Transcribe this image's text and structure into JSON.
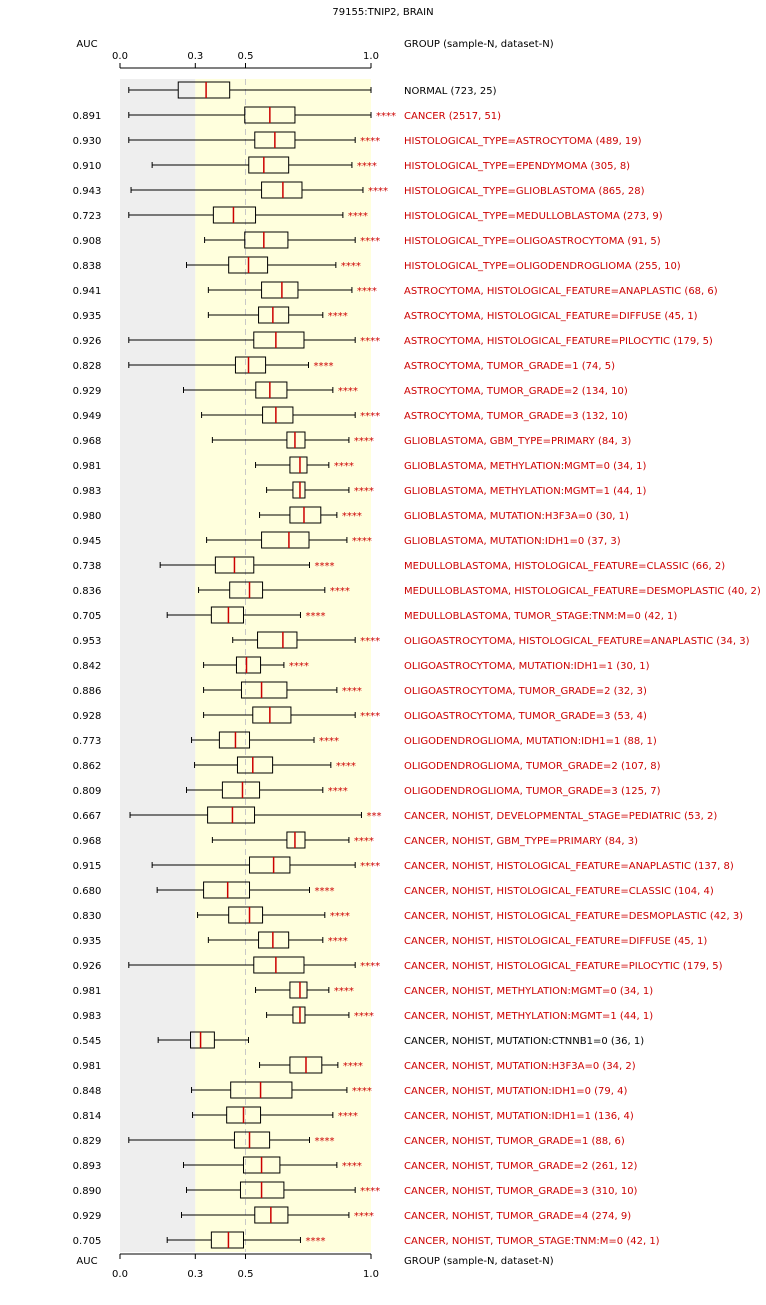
{
  "chart_data": {
    "type": "boxplot",
    "title": "79155:TNIP2, BRAIN",
    "auc_header": "AUC",
    "group_header": "GROUP (sample-N, dataset-N)",
    "xlim": [
      0,
      1
    ],
    "ticks": [
      {
        "value": 0.0,
        "label": "0.0"
      },
      {
        "value": 0.3,
        "label": "0.3"
      },
      {
        "value": 0.5,
        "label": "0.5"
      },
      {
        "value": 1.0,
        "label": "1.0"
      }
    ],
    "gray_region": [
      0,
      0.3
    ],
    "yellow_region": [
      0.3,
      1.0
    ],
    "colors": {
      "significant": "#cc0000",
      "normal": "#000000",
      "gray_band": "#eeeeee",
      "yellow_band": "#ffffdd",
      "median": "#cc0000"
    },
    "rows": [
      {
        "auc": "",
        "label": "NORMAL (723, 25)",
        "red": false,
        "sig": "",
        "min": 0.035,
        "q1": 0.232,
        "median": 0.343,
        "q3": 0.437,
        "max": 1.0
      },
      {
        "auc": "0.891",
        "label": "CANCER (2517, 51)",
        "red": true,
        "sig": "****",
        "min": 0.035,
        "q1": 0.497,
        "median": 0.597,
        "q3": 0.697,
        "max": 1.0
      },
      {
        "auc": "0.930",
        "label": "HISTOLOGICAL_TYPE=ASTROCYTOMA (489, 19)",
        "red": true,
        "sig": "****",
        "min": 0.035,
        "q1": 0.537,
        "median": 0.617,
        "q3": 0.697,
        "max": 0.937
      },
      {
        "auc": "0.910",
        "label": "HISTOLOGICAL_TYPE=EPENDYMOMA (305, 8)",
        "red": true,
        "sig": "****",
        "min": 0.128,
        "q1": 0.513,
        "median": 0.573,
        "q3": 0.672,
        "max": 0.924
      },
      {
        "auc": "0.943",
        "label": "HISTOLOGICAL_TYPE=GLIOBLASTOMA (865, 28)",
        "red": true,
        "sig": "****",
        "min": 0.044,
        "q1": 0.564,
        "median": 0.649,
        "q3": 0.725,
        "max": 0.968
      },
      {
        "auc": "0.723",
        "label": "HISTOLOGICAL_TYPE=MEDULLOBLASTOMA (273, 9)",
        "red": true,
        "sig": "****",
        "min": 0.035,
        "q1": 0.372,
        "median": 0.452,
        "q3": 0.54,
        "max": 0.888
      },
      {
        "auc": "0.908",
        "label": "HISTOLOGICAL_TYPE=OLIGOASTROCYTOMA (91, 5)",
        "red": true,
        "sig": "****",
        "min": 0.337,
        "q1": 0.497,
        "median": 0.573,
        "q3": 0.669,
        "max": 0.937
      },
      {
        "auc": "0.838",
        "label": "HISTOLOGICAL_TYPE=OLIGODENDROGLIOMA (255, 10)",
        "red": true,
        "sig": "****",
        "min": 0.265,
        "q1": 0.433,
        "median": 0.512,
        "q3": 0.588,
        "max": 0.86
      },
      {
        "auc": "0.941",
        "label": "ASTROCYTOMA, HISTOLOGICAL_FEATURE=ANAPLASTIC (68, 6)",
        "red": true,
        "sig": "****",
        "min": 0.352,
        "q1": 0.564,
        "median": 0.645,
        "q3": 0.709,
        "max": 0.924
      },
      {
        "auc": "0.935",
        "label": "ASTROCYTOMA, HISTOLOGICAL_FEATURE=DIFFUSE (45, 1)",
        "red": true,
        "sig": "****",
        "min": 0.352,
        "q1": 0.552,
        "median": 0.609,
        "q3": 0.672,
        "max": 0.808
      },
      {
        "auc": "0.926",
        "label": "ASTROCYTOMA, HISTOLOGICAL_FEATURE=PILOCYTIC (179, 5)",
        "red": true,
        "sig": "****",
        "min": 0.035,
        "q1": 0.533,
        "median": 0.621,
        "q3": 0.733,
        "max": 0.937
      },
      {
        "auc": "0.828",
        "label": "ASTROCYTOMA, TUMOR_GRADE=1 (74, 5)",
        "red": true,
        "sig": "****",
        "min": 0.035,
        "q1": 0.46,
        "median": 0.512,
        "q3": 0.58,
        "max": 0.751
      },
      {
        "auc": "0.929",
        "label": "ASTROCYTOMA, TUMOR_GRADE=2 (134, 10)",
        "red": true,
        "sig": "****",
        "min": 0.253,
        "q1": 0.541,
        "median": 0.597,
        "q3": 0.665,
        "max": 0.848
      },
      {
        "auc": "0.949",
        "label": "ASTROCYTOMA, TUMOR_GRADE=3 (132, 10)",
        "red": true,
        "sig": "****",
        "min": 0.325,
        "q1": 0.568,
        "median": 0.621,
        "q3": 0.689,
        "max": 0.937
      },
      {
        "auc": "0.968",
        "label": "GLIOBLASTOMA, GBM_TYPE=PRIMARY (84, 3)",
        "red": true,
        "sig": "****",
        "min": 0.368,
        "q1": 0.665,
        "median": 0.697,
        "q3": 0.737,
        "max": 0.912
      },
      {
        "auc": "0.981",
        "label": "GLIOBLASTOMA, METHYLATION:MGMT=0 (34, 1)",
        "red": true,
        "sig": "****",
        "min": 0.54,
        "q1": 0.677,
        "median": 0.717,
        "q3": 0.745,
        "max": 0.832
      },
      {
        "auc": "0.983",
        "label": "GLIOBLASTOMA, METHYLATION:MGMT=1 (44, 1)",
        "red": true,
        "sig": "****",
        "min": 0.584,
        "q1": 0.689,
        "median": 0.717,
        "q3": 0.737,
        "max": 0.912
      },
      {
        "auc": "0.980",
        "label": "GLIOBLASTOMA, MUTATION:H3F3A=0 (30, 1)",
        "red": true,
        "sig": "****",
        "min": 0.556,
        "q1": 0.677,
        "median": 0.733,
        "q3": 0.8,
        "max": 0.864
      },
      {
        "auc": "0.945",
        "label": "GLIOBLASTOMA, MUTATION:IDH1=0 (37, 3)",
        "red": true,
        "sig": "****",
        "min": 0.345,
        "q1": 0.564,
        "median": 0.673,
        "q3": 0.753,
        "max": 0.904
      },
      {
        "auc": "0.738",
        "label": "MEDULLOBLASTOMA, HISTOLOGICAL_FEATURE=CLASSIC (66, 2)",
        "red": true,
        "sig": "****",
        "min": 0.16,
        "q1": 0.38,
        "median": 0.456,
        "q3": 0.533,
        "max": 0.755
      },
      {
        "auc": "0.836",
        "label": "MEDULLOBLASTOMA, HISTOLOGICAL_FEATURE=DESMOPLASTIC (40, 2)",
        "red": true,
        "sig": "****",
        "min": 0.313,
        "q1": 0.437,
        "median": 0.516,
        "q3": 0.568,
        "max": 0.816
      },
      {
        "auc": "0.705",
        "label": "MEDULLOBLASTOMA, TUMOR_STAGE:TNM:M=0 (42, 1)",
        "red": true,
        "sig": "****",
        "min": 0.188,
        "q1": 0.364,
        "median": 0.432,
        "q3": 0.492,
        "max": 0.719
      },
      {
        "auc": "0.953",
        "label": "OLIGOASTROCYTOMA, HISTOLOGICAL_FEATURE=ANAPLASTIC (34, 3)",
        "red": true,
        "sig": "****",
        "min": 0.449,
        "q1": 0.548,
        "median": 0.649,
        "q3": 0.705,
        "max": 0.937
      },
      {
        "auc": "0.842",
        "label": "OLIGOASTROCYTOMA, MUTATION:IDH1=1 (30, 1)",
        "red": true,
        "sig": "****",
        "min": 0.333,
        "q1": 0.464,
        "median": 0.504,
        "q3": 0.56,
        "max": 0.653
      },
      {
        "auc": "0.886",
        "label": "OLIGOASTROCYTOMA, TUMOR_GRADE=2 (32, 3)",
        "red": true,
        "sig": "****",
        "min": 0.333,
        "q1": 0.484,
        "median": 0.564,
        "q3": 0.665,
        "max": 0.864
      },
      {
        "auc": "0.928",
        "label": "OLIGOASTROCYTOMA, TUMOR_GRADE=3 (53, 4)",
        "red": true,
        "sig": "****",
        "min": 0.333,
        "q1": 0.529,
        "median": 0.597,
        "q3": 0.681,
        "max": 0.937
      },
      {
        "auc": "0.773",
        "label": "OLIGODENDROGLIOMA, MUTATION:IDH1=1 (88, 1)",
        "red": true,
        "sig": "****",
        "min": 0.285,
        "q1": 0.396,
        "median": 0.46,
        "q3": 0.516,
        "max": 0.773
      },
      {
        "auc": "0.862",
        "label": "OLIGODENDROGLIOMA, TUMOR_GRADE=2 (107, 8)",
        "red": true,
        "sig": "****",
        "min": 0.297,
        "q1": 0.468,
        "median": 0.529,
        "q3": 0.608,
        "max": 0.84
      },
      {
        "auc": "0.809",
        "label": "OLIGODENDROGLIOMA, TUMOR_GRADE=3 (125, 7)",
        "red": true,
        "sig": "****",
        "min": 0.265,
        "q1": 0.408,
        "median": 0.488,
        "q3": 0.556,
        "max": 0.808
      },
      {
        "auc": "0.667",
        "label": "CANCER, NOHIST, DEVELOPMENTAL_STAGE=PEDIATRIC (53, 2)",
        "red": true,
        "sig": "***",
        "min": 0.04,
        "q1": 0.349,
        "median": 0.448,
        "q3": 0.536,
        "max": 0.962
      },
      {
        "auc": "0.968",
        "label": "CANCER, NOHIST, GBM_TYPE=PRIMARY (84, 3)",
        "red": true,
        "sig": "****",
        "min": 0.368,
        "q1": 0.665,
        "median": 0.697,
        "q3": 0.737,
        "max": 0.912
      },
      {
        "auc": "0.915",
        "label": "CANCER, NOHIST, HISTOLOGICAL_FEATURE=ANAPLASTIC (137, 8)",
        "red": true,
        "sig": "****",
        "min": 0.128,
        "q1": 0.516,
        "median": 0.612,
        "q3": 0.677,
        "max": 0.937
      },
      {
        "auc": "0.680",
        "label": "CANCER, NOHIST, HISTOLOGICAL_FEATURE=CLASSIC (104, 4)",
        "red": true,
        "sig": "****",
        "min": 0.148,
        "q1": 0.333,
        "median": 0.429,
        "q3": 0.516,
        "max": 0.755
      },
      {
        "auc": "0.830",
        "label": "CANCER, NOHIST, HISTOLOGICAL_FEATURE=DESMOPLASTIC (42, 3)",
        "red": true,
        "sig": "****",
        "min": 0.309,
        "q1": 0.433,
        "median": 0.516,
        "q3": 0.568,
        "max": 0.816
      },
      {
        "auc": "0.935",
        "label": "CANCER, NOHIST, HISTOLOGICAL_FEATURE=DIFFUSE (45, 1)",
        "red": true,
        "sig": "****",
        "min": 0.352,
        "q1": 0.552,
        "median": 0.609,
        "q3": 0.672,
        "max": 0.808
      },
      {
        "auc": "0.926",
        "label": "CANCER, NOHIST, HISTOLOGICAL_FEATURE=PILOCYTIC (179, 5)",
        "red": true,
        "sig": "****",
        "min": 0.035,
        "q1": 0.533,
        "median": 0.621,
        "q3": 0.733,
        "max": 0.937
      },
      {
        "auc": "0.981",
        "label": "CANCER, NOHIST, METHYLATION:MGMT=0 (34, 1)",
        "red": true,
        "sig": "****",
        "min": 0.54,
        "q1": 0.677,
        "median": 0.717,
        "q3": 0.745,
        "max": 0.832
      },
      {
        "auc": "0.983",
        "label": "CANCER, NOHIST, METHYLATION:MGMT=1 (44, 1)",
        "red": true,
        "sig": "****",
        "min": 0.584,
        "q1": 0.689,
        "median": 0.717,
        "q3": 0.737,
        "max": 0.912
      },
      {
        "auc": "0.545",
        "label": "CANCER, NOHIST, MUTATION:CTNNB1=0 (36, 1)",
        "red": false,
        "sig": "",
        "min": 0.152,
        "q1": 0.281,
        "median": 0.321,
        "q3": 0.376,
        "max": 0.512
      },
      {
        "auc": "0.981",
        "label": "CANCER, NOHIST, MUTATION:H3F3A=0 (34, 2)",
        "red": true,
        "sig": "****",
        "min": 0.556,
        "q1": 0.677,
        "median": 0.741,
        "q3": 0.804,
        "max": 0.868
      },
      {
        "auc": "0.848",
        "label": "CANCER, NOHIST, MUTATION:IDH1=0 (79, 4)",
        "red": true,
        "sig": "****",
        "min": 0.285,
        "q1": 0.441,
        "median": 0.56,
        "q3": 0.685,
        "max": 0.904
      },
      {
        "auc": "0.814",
        "label": "CANCER, NOHIST, MUTATION:IDH1=1 (136, 4)",
        "red": true,
        "sig": "****",
        "min": 0.289,
        "q1": 0.425,
        "median": 0.492,
        "q3": 0.56,
        "max": 0.848
      },
      {
        "auc": "0.829",
        "label": "CANCER, NOHIST, TUMOR_GRADE=1 (88, 6)",
        "red": true,
        "sig": "****",
        "min": 0.035,
        "q1": 0.456,
        "median": 0.516,
        "q3": 0.596,
        "max": 0.755
      },
      {
        "auc": "0.893",
        "label": "CANCER, NOHIST, TUMOR_GRADE=2 (261, 12)",
        "red": true,
        "sig": "****",
        "min": 0.253,
        "q1": 0.492,
        "median": 0.564,
        "q3": 0.637,
        "max": 0.864
      },
      {
        "auc": "0.890",
        "label": "CANCER, NOHIST, TUMOR_GRADE=3 (310, 10)",
        "red": true,
        "sig": "****",
        "min": 0.265,
        "q1": 0.48,
        "median": 0.564,
        "q3": 0.653,
        "max": 0.937
      },
      {
        "auc": "0.929",
        "label": "CANCER, NOHIST, TUMOR_GRADE=4 (274, 9)",
        "red": true,
        "sig": "****",
        "min": 0.245,
        "q1": 0.537,
        "median": 0.601,
        "q3": 0.669,
        "max": 0.912
      },
      {
        "auc": "0.705",
        "label": "CANCER, NOHIST, TUMOR_STAGE:TNM:M=0 (42, 1)",
        "red": true,
        "sig": "****",
        "min": 0.188,
        "q1": 0.364,
        "median": 0.432,
        "q3": 0.492,
        "max": 0.719
      }
    ]
  }
}
